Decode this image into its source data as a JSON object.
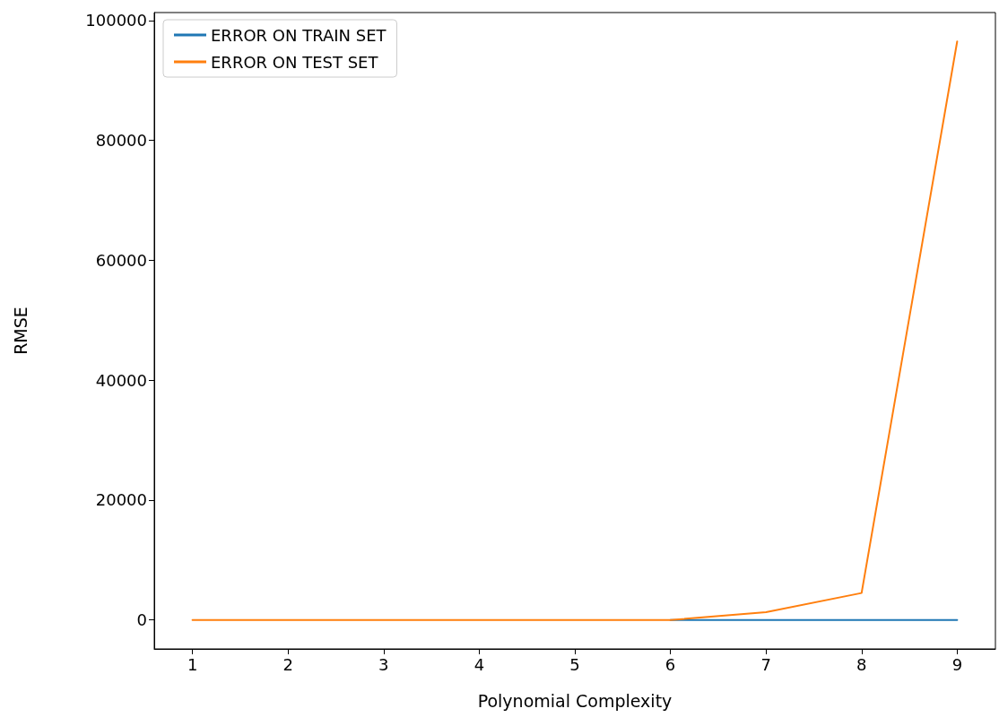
{
  "chart_data": {
    "type": "line",
    "xlabel": "Polynomial Complexity",
    "ylabel": "RMSE",
    "x": [
      1,
      2,
      3,
      4,
      5,
      6,
      7,
      8,
      9
    ],
    "series": [
      {
        "name": "ERROR ON TRAIN SET",
        "color": "#1f77b4",
        "values": [
          null,
          null,
          null,
          null,
          null,
          0,
          0,
          0,
          0
        ]
      },
      {
        "name": "ERROR ON TEST SET",
        "color": "#ff7f0e",
        "values": [
          0,
          0,
          0,
          0,
          0,
          0,
          1300,
          4500,
          96500
        ]
      }
    ],
    "xlim": [
      0.6,
      9.4
    ],
    "xticks": [
      1,
      2,
      3,
      4,
      5,
      6,
      7,
      8,
      9
    ],
    "ylim": [
      -4825,
      101325
    ],
    "yticks": [
      0,
      20000,
      40000,
      60000,
      80000,
      100000
    ],
    "grid": false,
    "legend": "top left",
    "marker": "none",
    "line_style": "solid"
  }
}
